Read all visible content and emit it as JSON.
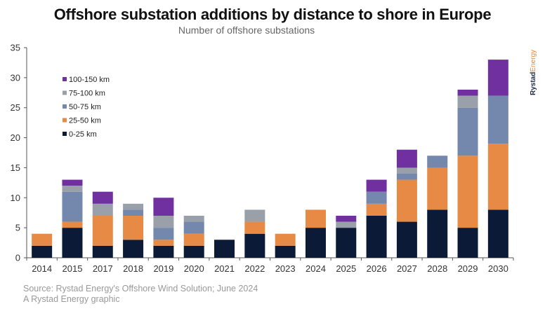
{
  "chart_data": {
    "type": "bar",
    "stacked": true,
    "title": "Offshore substation additions by distance to shore in Europe",
    "subtitle": "Number of offshore substations",
    "xlabel": "",
    "ylabel": "",
    "ylim": [
      0,
      35
    ],
    "yticks": [
      0,
      5,
      10,
      15,
      20,
      25,
      30,
      35
    ],
    "grid": false,
    "legend_position": "top-left",
    "categories": [
      "2014",
      "2015",
      "2017",
      "2018",
      "2019",
      "2020",
      "2021",
      "2022",
      "2023",
      "2024",
      "2025",
      "2026",
      "2027",
      "2028",
      "2029",
      "2030"
    ],
    "series": [
      {
        "name": "0-25 km",
        "color": "#0b1a36",
        "values": [
          2,
          5,
          2,
          3,
          2,
          2,
          3,
          4,
          2,
          5,
          5,
          7,
          6,
          8,
          5,
          8
        ]
      },
      {
        "name": "25-50 km",
        "color": "#e68a45",
        "values": [
          2,
          1,
          5,
          4,
          1,
          2,
          0,
          2,
          2,
          3,
          0,
          2,
          7,
          7,
          12,
          11
        ]
      },
      {
        "name": "50-75 km",
        "color": "#7388ac",
        "values": [
          0,
          5,
          0,
          1,
          2,
          2,
          0,
          0,
          0,
          0,
          0,
          2,
          1,
          2,
          8,
          8
        ]
      },
      {
        "name": "75-100 km",
        "color": "#9aa0aa",
        "values": [
          0,
          1,
          2,
          1,
          2,
          1,
          0,
          2,
          0,
          0,
          1,
          0,
          1,
          0,
          2,
          0
        ]
      },
      {
        "name": "100-150 km",
        "color": "#7030a0",
        "values": [
          0,
          1,
          2,
          0,
          3,
          0,
          0,
          0,
          0,
          0,
          1,
          2,
          3,
          0,
          1,
          6
        ]
      }
    ]
  },
  "brand": {
    "part1": "Rystad",
    "part2": "Energy",
    "color1": "#1b2a4a",
    "color2": "#e68a45"
  },
  "footer": {
    "source": "Source: Rystad Energy's Offshore Wind Solution;  June 2024",
    "credit": "A Rystad Energy graphic"
  }
}
